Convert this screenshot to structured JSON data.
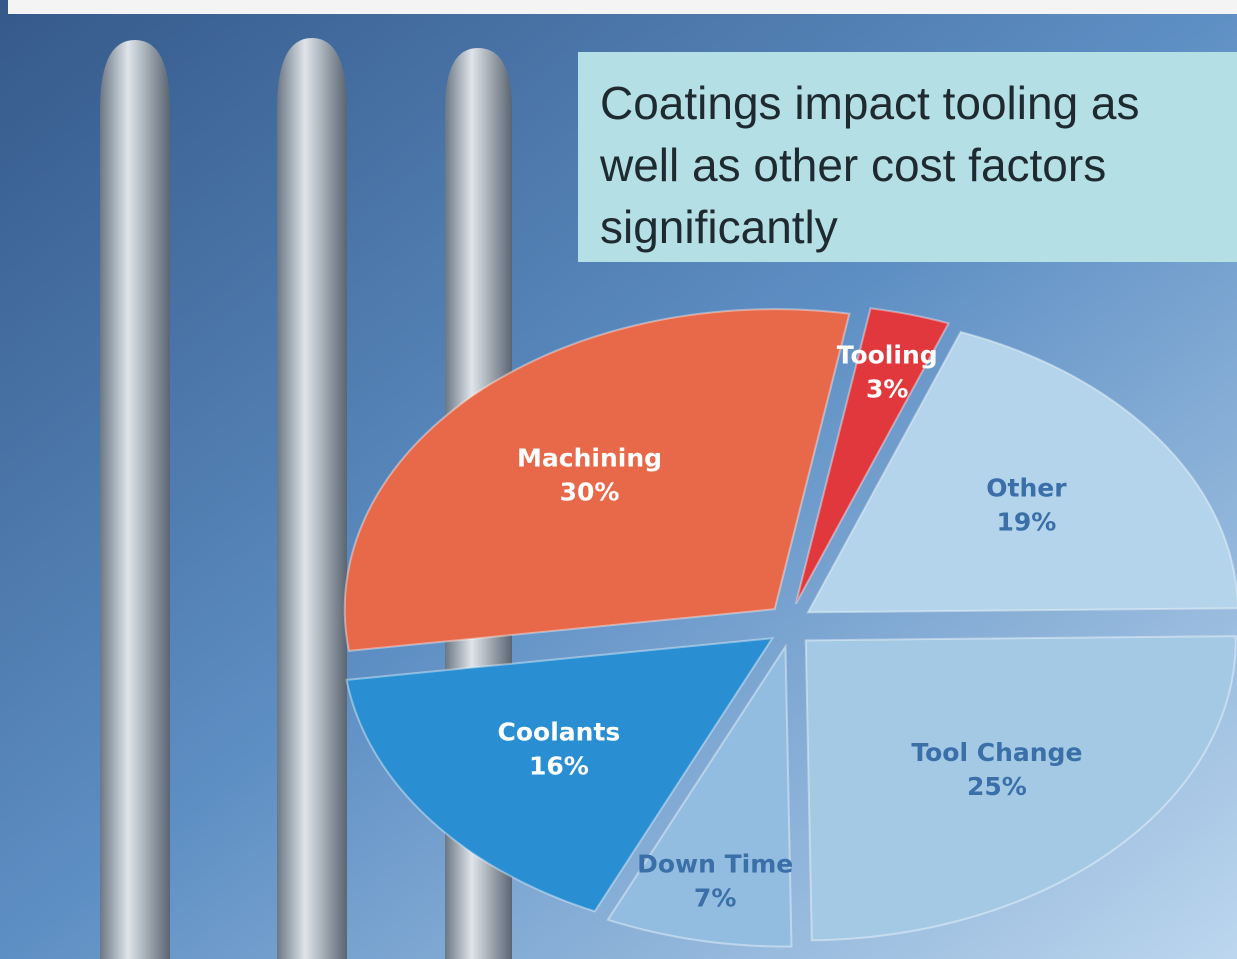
{
  "chart_data": {
    "type": "pie",
    "title": "Coatings impact tooling as well as other cost factors significantly",
    "categories": [
      "Machining",
      "Tooling",
      "Other",
      "Tool Change",
      "Down Time",
      "Coolants"
    ],
    "values": [
      30,
      3,
      19,
      25,
      7,
      16
    ],
    "value_labels": [
      "30%",
      "3%",
      "19%",
      "25%",
      "7%",
      "16%"
    ],
    "colors": [
      "#e8694a",
      "#e0383c",
      "#b3d4ea",
      "#a3c9e5",
      "#93bde0",
      "#2a8fd2"
    ]
  }
}
